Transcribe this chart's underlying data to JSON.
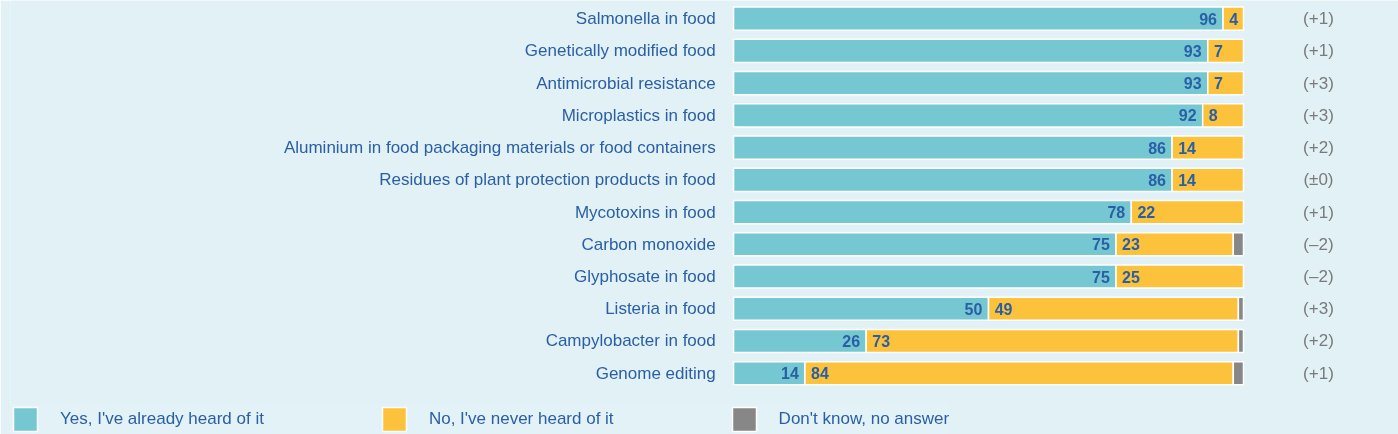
{
  "chart_data": {
    "type": "bar",
    "orientation": "horizontal",
    "stacked": true,
    "categories": [
      "Salmonella in food",
      "Genetically modified food",
      "Antimicrobial resistance",
      "Microplastics in food",
      "Aluminium in food packaging materials or food containers",
      "Residues of plant protection products in food",
      "Mycotoxins in food",
      "Carbon monoxide",
      "Glyphosate in food",
      "Listeria in food",
      "Campylobacter in food",
      "Genome editing"
    ],
    "series": [
      {
        "name": "Yes, I've already heard of it",
        "color": "#75c7d2",
        "values": [
          96,
          93,
          93,
          92,
          86,
          86,
          78,
          75,
          75,
          50,
          26,
          14
        ],
        "value_labels": [
          "96",
          "93",
          "93",
          "92",
          "86",
          "86",
          "78",
          "75",
          "75",
          "50",
          "26",
          "14"
        ]
      },
      {
        "name": "No, I've never heard of it",
        "color": "#fcc23c",
        "values": [
          4,
          7,
          7,
          8,
          14,
          14,
          22,
          23,
          25,
          49,
          73,
          84
        ],
        "value_labels": [
          "4",
          "7",
          "7",
          "8",
          "14",
          "14",
          "22",
          "23",
          "25",
          "49",
          "73",
          "84"
        ]
      },
      {
        "name": "Don't know, no answer",
        "color": "#878787",
        "values": [
          0,
          0,
          0,
          0,
          0,
          0,
          0,
          2,
          0,
          1,
          1,
          2
        ]
      }
    ],
    "annotations": [
      "(+1)",
      "(+1)",
      "(+3)",
      "(+3)",
      "(+2)",
      "(±0)",
      "(+1)",
      "(–2)",
      "(–2)",
      "(+3)",
      "(+2)",
      "(+1)"
    ],
    "legend": "bottom",
    "grid": false
  }
}
